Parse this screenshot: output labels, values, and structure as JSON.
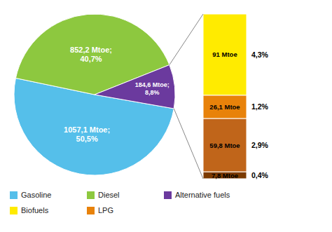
{
  "chart_data": [
    {
      "type": "pie",
      "categories": [
        "Gasoline",
        "Diesel",
        "Alternative fuels"
      ],
      "values": [
        50.5,
        40.7,
        8.8
      ],
      "value_labels": [
        "1057,1 Mtoe;\n50,5%",
        "852,2 Mtoe;\n40,7%",
        "184,6 Mtoe;\n8,8%"
      ],
      "colors": [
        "#55BFEA",
        "#8DC83F",
        "#6B3A9E"
      ],
      "data_labels": true,
      "legend": "bottom"
    },
    {
      "type": "bar",
      "stacked": true,
      "tick_labels": false,
      "categories": [
        null
      ],
      "ylim": [
        0,
        184.7
      ],
      "data_labels": true,
      "series": [
        {
          "color": "#7B3A00",
          "values": [
            7.8
          ],
          "value_labels": [
            "7,8 Mtoe"
          ],
          "shares": [
            0.4
          ],
          "share_labels": [
            "0,4%"
          ]
        },
        {
          "color": "#C0651A",
          "values": [
            59.8
          ],
          "value_labels": [
            "59,8 Mtoe"
          ],
          "shares": [
            2.9
          ],
          "share_labels": [
            "2,9%"
          ]
        },
        {
          "name": "LPG",
          "color": "#E8820A",
          "values": [
            26.1
          ],
          "value_labels": [
            "26,1 Mtoe"
          ],
          "shares": [
            1.2
          ],
          "share_labels": [
            "1,2%"
          ]
        },
        {
          "name": "Biofuels",
          "color": "#FFEB00",
          "values": [
            91.0
          ],
          "value_labels": [
            "91 Mtoe"
          ],
          "shares": [
            4.3
          ],
          "share_labels": [
            "4,3%"
          ]
        }
      ]
    }
  ]
}
